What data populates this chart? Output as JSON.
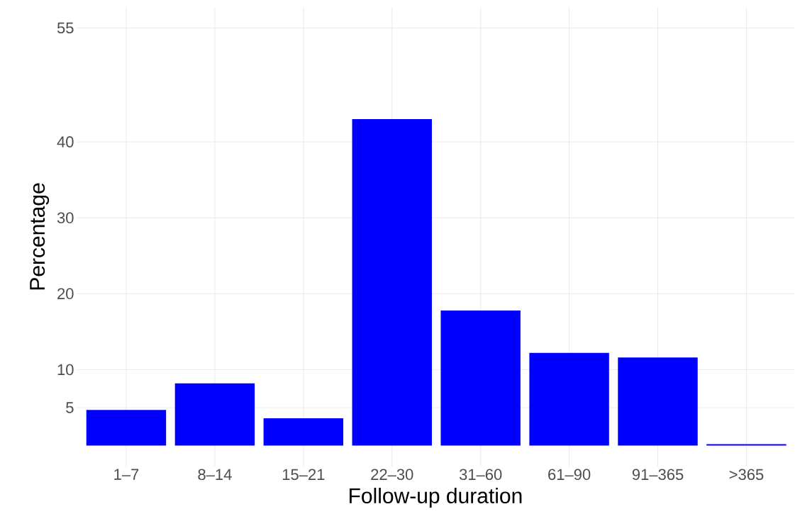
{
  "chart_data": {
    "type": "bar",
    "xlabel": "Follow-up duration",
    "ylabel": "Percentage",
    "categories": [
      "1–7",
      "8–14",
      "15–21",
      "22–30",
      "31–60",
      "61–90",
      "91–365",
      ">365"
    ],
    "values": [
      4.7,
      8.2,
      3.6,
      43.0,
      17.8,
      12.2,
      11.6,
      0.2
    ],
    "color": "#0000ff",
    "ylim": [
      -2.75,
      57.75
    ],
    "yticks": [
      5,
      10,
      20,
      30,
      40,
      55
    ],
    "grid": true
  }
}
